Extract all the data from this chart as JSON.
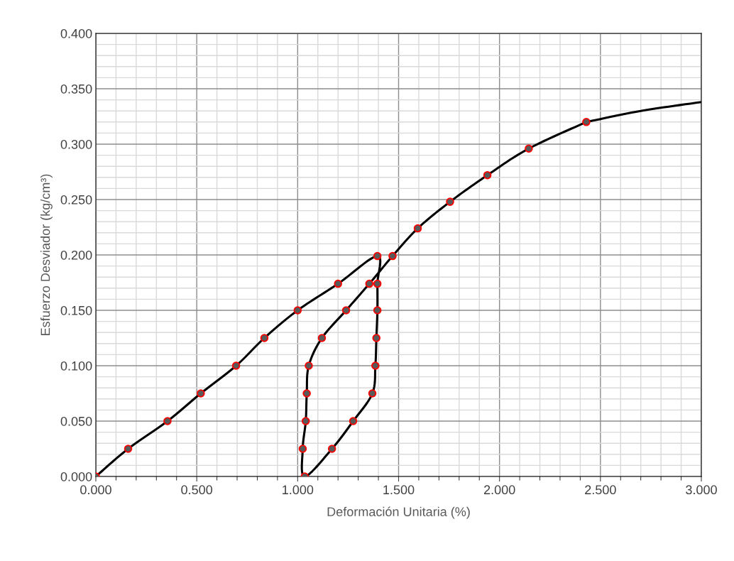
{
  "chart_data": {
    "type": "line",
    "xlabel": "Deformación Unitaria (%)",
    "ylabel": "Esfuerzo Desviador (kg/cm³)",
    "xlim": [
      0,
      3
    ],
    "ylim": [
      0,
      0.4
    ],
    "xticks": [
      {
        "value": 0,
        "label": "0.000"
      },
      {
        "value": 0.5,
        "label": "0.500"
      },
      {
        "value": 1,
        "label": "1.000"
      },
      {
        "value": 1.5,
        "label": "1.500"
      },
      {
        "value": 2,
        "label": "2.000"
      },
      {
        "value": 2.5,
        "label": "2.500"
      },
      {
        "value": 3,
        "label": "3.000"
      }
    ],
    "yticks": [
      {
        "value": 0,
        "label": "0.000"
      },
      {
        "value": 0.05,
        "label": "0.050"
      },
      {
        "value": 0.1,
        "label": "0.100"
      },
      {
        "value": 0.15,
        "label": "0.150"
      },
      {
        "value": 0.2,
        "label": "0.200"
      },
      {
        "value": 0.25,
        "label": "0.250"
      },
      {
        "value": 0.3,
        "label": "0.300"
      },
      {
        "value": 0.35,
        "label": "0.350"
      },
      {
        "value": 0.4,
        "label": "0.400"
      }
    ],
    "grid": true,
    "series": [
      {
        "color": "#000000",
        "marker": "circle",
        "x": [
          0,
          0.16,
          0.355,
          0.52,
          0.695,
          0.835,
          1.0,
          1.2,
          1.395,
          1.395,
          1.395,
          1.39,
          1.385,
          1.37,
          1.275,
          1.17,
          1.035,
          1.025,
          1.04,
          1.045,
          1.055,
          1.12,
          1.24,
          1.355,
          1.47,
          1.595,
          1.755,
          1.94,
          2.145,
          2.43
        ],
        "values": [
          0,
          0.025,
          0.05,
          0.075,
          0.1,
          0.125,
          0.15,
          0.174,
          0.199,
          0.174,
          0.15,
          0.125,
          0.1,
          0.075,
          0.05,
          0.025,
          0,
          0.025,
          0.05,
          0.075,
          0.1,
          0.125,
          0.15,
          0.174,
          0.199,
          0.224,
          0.248,
          0.272,
          0.296,
          0.32
        ]
      },
      {
        "color": "#000000",
        "marker": "none",
        "x": [
          2.43,
          2.7,
          3.0
        ],
        "values": [
          0.32,
          0.33,
          0.338
        ]
      }
    ]
  }
}
